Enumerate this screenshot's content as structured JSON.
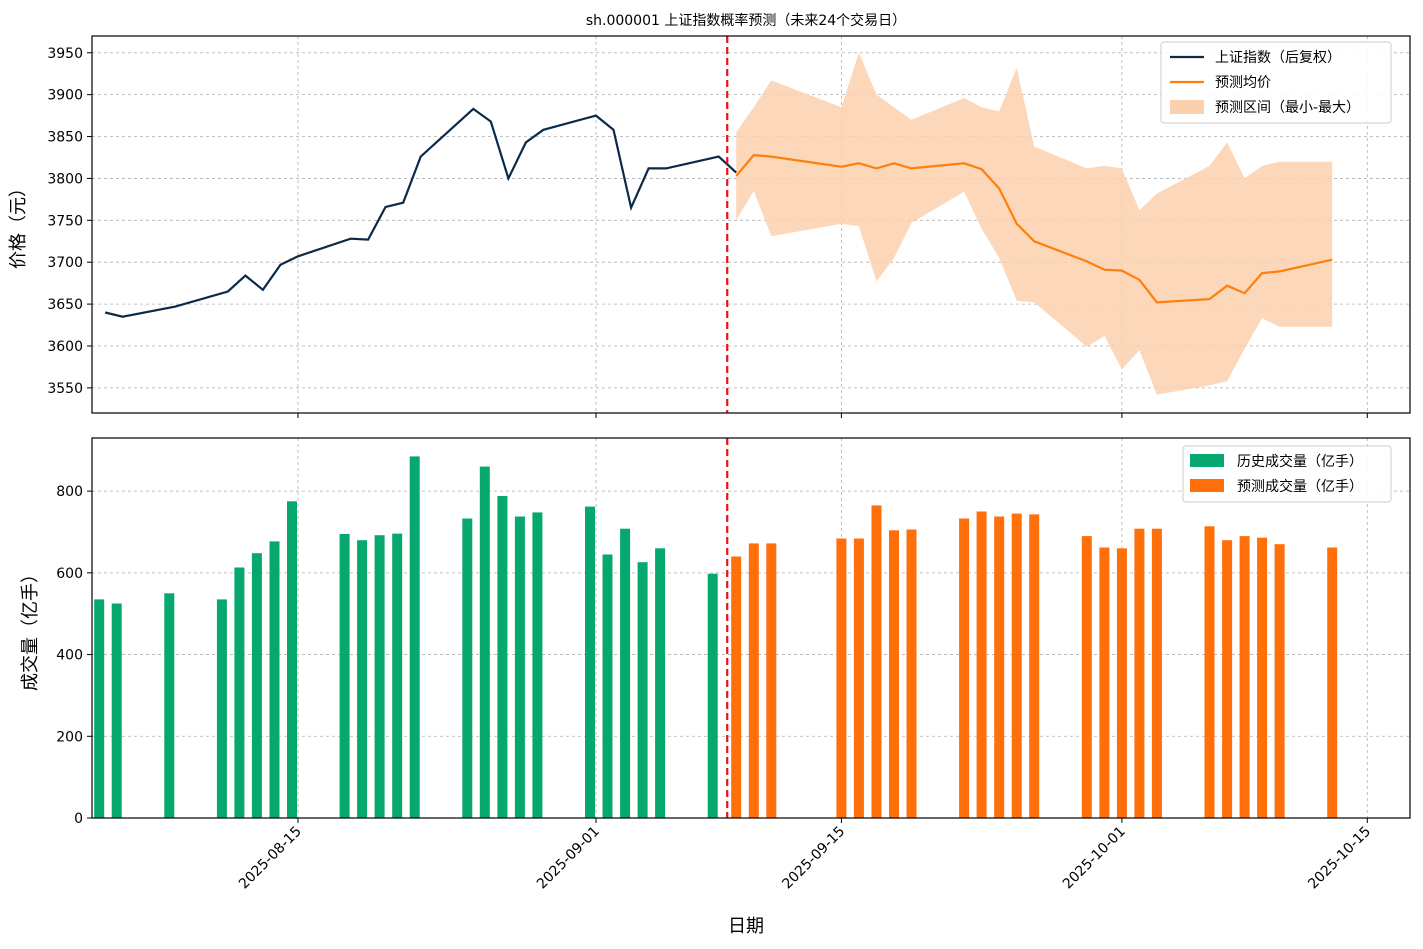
{
  "title": "sh.000001 上证指数概率预测（未来24个交易日）",
  "colors": {
    "history_line": "#0b2a4a",
    "forecast_line": "#ff7f0e",
    "band": "#fbd0ad",
    "hist_bar": "#06a86e",
    "fore_bar": "#ff6f0a",
    "cutoff": "#ee1111",
    "grid": "#b0b0b0"
  },
  "chart_data": [
    {
      "type": "line",
      "ylabel": "价格（元）",
      "ylim": [
        3520,
        3970
      ],
      "yticks": [
        3550,
        3600,
        3650,
        3700,
        3750,
        3800,
        3850,
        3900,
        3950
      ],
      "grid": true,
      "legend_position": "top-right",
      "cutoff_date": "2025-09-09",
      "history": {
        "name": "上证指数（后复权）",
        "x": [
          "2025-08-04",
          "2025-08-05",
          "2025-08-08",
          "2025-08-11",
          "2025-08-12",
          "2025-08-13",
          "2025-08-14",
          "2025-08-15",
          "2025-08-18",
          "2025-08-19",
          "2025-08-20",
          "2025-08-21",
          "2025-08-22",
          "2025-08-25",
          "2025-08-26",
          "2025-08-27",
          "2025-08-28",
          "2025-08-29",
          "2025-09-01",
          "2025-09-02",
          "2025-09-03",
          "2025-09-04",
          "2025-09-05",
          "2025-09-08",
          "2025-09-09"
        ],
        "values": [
          3640,
          3635,
          3647,
          3665,
          3684,
          3667,
          3697,
          3707,
          3728,
          3727,
          3766,
          3771,
          3826,
          3883,
          3868,
          3800,
          3843,
          3858,
          3875,
          3858,
          3765,
          3812,
          3812,
          3826,
          3807
        ]
      },
      "forecast": {
        "name": "预测均价",
        "x": [
          "2025-09-09",
          "2025-09-10",
          "2025-09-11",
          "2025-09-15",
          "2025-09-16",
          "2025-09-17",
          "2025-09-18",
          "2025-09-19",
          "2025-09-22",
          "2025-09-23",
          "2025-09-24",
          "2025-09-25",
          "2025-09-26",
          "2025-09-29",
          "2025-09-30",
          "2025-10-01",
          "2025-10-02",
          "2025-10-03",
          "2025-10-06",
          "2025-10-07",
          "2025-10-08",
          "2025-10-09",
          "2025-10-10",
          "2025-10-13"
        ],
        "values": [
          3803,
          3828,
          3826,
          3814,
          3818,
          3812,
          3818,
          3812,
          3818,
          3811,
          3788,
          3746,
          3725,
          3701,
          3691,
          3690,
          3679,
          3652,
          3656,
          3672,
          3663,
          3687,
          3689,
          3703
        ]
      },
      "band": {
        "name": "预测区间（最小-最大）",
        "upper": [
          3855,
          3885,
          3917,
          3885,
          3950,
          3900,
          3885,
          3870,
          3896,
          3885,
          3880,
          3932,
          3838,
          3812,
          3815,
          3812,
          3762,
          3782,
          3815,
          3843,
          3800,
          3815,
          3820,
          3820
        ],
        "lower": [
          3750,
          3785,
          3731,
          3746,
          3743,
          3677,
          3705,
          3747,
          3784,
          3740,
          3705,
          3654,
          3652,
          3599,
          3612,
          3572,
          3595,
          3542,
          3553,
          3558,
          3597,
          3633,
          3623,
          3623
        ]
      }
    },
    {
      "type": "bar",
      "ylabel": "成交量（亿手）",
      "xlabel": "日期",
      "ylim": [
        0,
        930
      ],
      "yticks": [
        0,
        200,
        400,
        600,
        800
      ],
      "grid": true,
      "legend_position": "top-right",
      "xticks": [
        "2025-08-15",
        "2025-09-01",
        "2025-09-15",
        "2025-10-01",
        "2025-10-15"
      ],
      "history": {
        "name": "历史成交量（亿手）",
        "x": [
          "2025-08-04",
          "2025-08-05",
          "2025-08-08",
          "2025-08-11",
          "2025-08-12",
          "2025-08-13",
          "2025-08-14",
          "2025-08-15",
          "2025-08-18",
          "2025-08-19",
          "2025-08-20",
          "2025-08-21",
          "2025-08-22",
          "2025-08-25",
          "2025-08-26",
          "2025-08-27",
          "2025-08-28",
          "2025-08-29",
          "2025-09-01",
          "2025-09-02",
          "2025-09-03",
          "2025-09-04",
          "2025-09-05",
          "2025-09-08",
          "2025-09-09"
        ],
        "values": [
          535,
          525,
          550,
          535,
          613,
          648,
          677,
          775,
          695,
          680,
          692,
          696,
          885,
          733,
          860,
          788,
          738,
          748,
          762,
          645,
          708,
          626,
          660,
          598,
          0
        ]
      },
      "forecast": {
        "name": "预测成交量（亿手）",
        "x": [
          "2025-09-09",
          "2025-09-10",
          "2025-09-11",
          "2025-09-15",
          "2025-09-16",
          "2025-09-17",
          "2025-09-18",
          "2025-09-19",
          "2025-09-22",
          "2025-09-23",
          "2025-09-24",
          "2025-09-25",
          "2025-09-26",
          "2025-09-29",
          "2025-09-30",
          "2025-10-01",
          "2025-10-02",
          "2025-10-03",
          "2025-10-06",
          "2025-10-07",
          "2025-10-08",
          "2025-10-09",
          "2025-10-10",
          "2025-10-13"
        ],
        "values": [
          640,
          672,
          672,
          684,
          684,
          765,
          704,
          706,
          733,
          750,
          738,
          745,
          743,
          690,
          662,
          660,
          708,
          708,
          714,
          680,
          690,
          686,
          670,
          662
        ]
      }
    }
  ]
}
